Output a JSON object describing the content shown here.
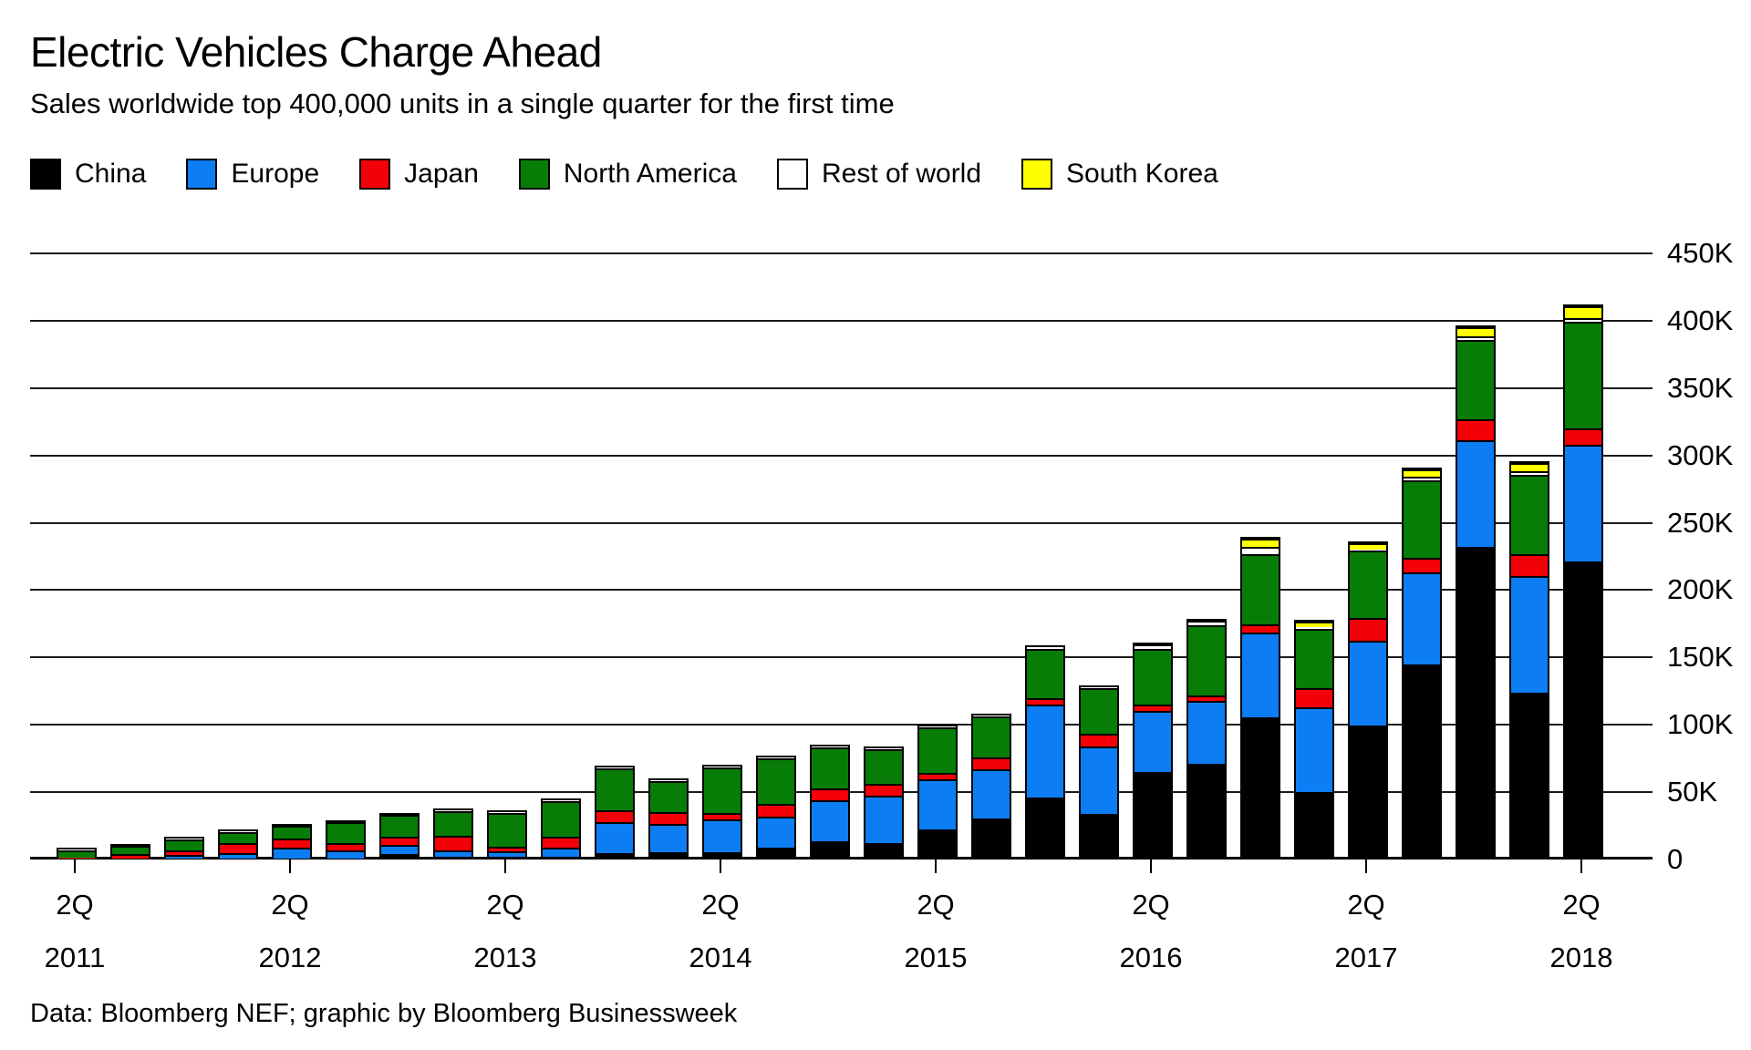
{
  "header": {
    "title": "Electric Vehicles Charge Ahead",
    "subtitle": "Sales worldwide top 400,000 units in a single quarter for the first time"
  },
  "footer": {
    "source": "Data: Bloomberg NEF; graphic by Bloomberg Businessweek"
  },
  "colors": {
    "china": "#000000",
    "europe": "#0d7df4",
    "japan": "#f40009",
    "north_america": "#077d07",
    "rest_of_world": "#ffffff",
    "south_korea": "#ffff00",
    "gridline": "#1a1a1a",
    "background": "#ffffff"
  },
  "chart_data": {
    "type": "bar",
    "stacked": true,
    "title": "Electric Vehicles Charge Ahead",
    "subtitle": "Sales worldwide top 400,000 units in a single quarter for the first time",
    "unit": "vehicles (values in thousands)",
    "grid": "horizontal",
    "legend_position": "top",
    "ylim": [
      0,
      450
    ],
    "y_tick_values": [
      0,
      50,
      100,
      150,
      200,
      250,
      300,
      350,
      400,
      450
    ],
    "y_tick_labels": [
      "0",
      "50K",
      "100K",
      "150K",
      "200K",
      "250K",
      "300K",
      "350K",
      "400K",
      "450K"
    ],
    "categories": [
      "2Q 2011",
      "3Q 2011",
      "4Q 2011",
      "1Q 2012",
      "2Q 2012",
      "3Q 2012",
      "4Q 2012",
      "1Q 2013",
      "2Q 2013",
      "3Q 2013",
      "4Q 2013",
      "1Q 2014",
      "2Q 2014",
      "3Q 2014",
      "4Q 2014",
      "1Q 2015",
      "2Q 2015",
      "3Q 2015",
      "4Q 2015",
      "1Q 2016",
      "2Q 2016",
      "3Q 2016",
      "4Q 2016",
      "1Q 2017",
      "2Q 2017",
      "3Q 2017",
      "4Q 2017",
      "1Q 2018",
      "2Q 2018"
    ],
    "x_ticks": [
      {
        "index": 0,
        "quarter": "2Q",
        "year": "2011"
      },
      {
        "index": 4,
        "quarter": "2Q",
        "year": "2012"
      },
      {
        "index": 8,
        "quarter": "2Q",
        "year": "2013"
      },
      {
        "index": 12,
        "quarter": "2Q",
        "year": "2014"
      },
      {
        "index": 16,
        "quarter": "2Q",
        "year": "2015"
      },
      {
        "index": 20,
        "quarter": "2Q",
        "year": "2016"
      },
      {
        "index": 24,
        "quarter": "2Q",
        "year": "2017"
      },
      {
        "index": 28,
        "quarter": "2Q",
        "year": "2018"
      }
    ],
    "series": [
      {
        "name": "China",
        "key": "china",
        "color": "#000000",
        "values": [
          0.7,
          0.8,
          1.0,
          1.0,
          1.0,
          1.0,
          5.0,
          2.5,
          2.0,
          2.0,
          5.0,
          6.0,
          6.0,
          9.5,
          14.0,
          13.0,
          23.0,
          32.0,
          47.5,
          35.0,
          67.5,
          73.0,
          109.0,
          51.5,
          102.0,
          148.0,
          236.0,
          126.5,
          225.0
        ]
      },
      {
        "name": "Europe",
        "key": "europe",
        "color": "#0d7df4",
        "values": [
          0.5,
          0.6,
          2.0,
          3.5,
          7.5,
          5.0,
          6.0,
          3.5,
          3.0,
          6.0,
          23.0,
          21.0,
          24.0,
          22.5,
          31.0,
          35.5,
          38.0,
          36.0,
          69.5,
          50.5,
          45.0,
          47.0,
          63.0,
          63.5,
          63.0,
          69.0,
          79.5,
          87.5,
          87.0
        ]
      },
      {
        "name": "Japan",
        "key": "japan",
        "color": "#f40009",
        "values": [
          0.8,
          2.0,
          2.8,
          7.5,
          6.5,
          5.0,
          5.0,
          10.5,
          2.7,
          7.5,
          8.0,
          8.0,
          4.0,
          8.5,
          7.5,
          8.0,
          3.5,
          8.0,
          3.5,
          8.0,
          3.5,
          2.5,
          5.0,
          13.5,
          15.5,
          9.5,
          14.5,
          15.0,
          11.0
        ]
      },
      {
        "name": "North America",
        "key": "north_america",
        "color": "#077d07",
        "values": [
          5.0,
          6.4,
          9.3,
          8.5,
          9.8,
          16.5,
          17.0,
          19.5,
          27.0,
          28.0,
          31.5,
          23.5,
          34.0,
          34.5,
          31.0,
          25.5,
          33.5,
          30.0,
          36.0,
          33.5,
          41.5,
          53.0,
          52.5,
          44.0,
          50.0,
          57.5,
          58.5,
          59.0,
          78.5
        ]
      },
      {
        "name": "Rest of world",
        "key": "rest_of_world",
        "color": "#ffffff",
        "values": [
          0.2,
          0.2,
          0.4,
          0.3,
          0.3,
          0.3,
          0.4,
          0.4,
          0.4,
          0.5,
          0.7,
          0.5,
          0.7,
          0.5,
          0.7,
          0.7,
          1.0,
          1.0,
          1.0,
          1.0,
          2.5,
          2.0,
          4.0,
          1.0,
          1.0,
          1.5,
          1.5,
          1.5,
          2.0
        ]
      },
      {
        "name": "South Korea",
        "key": "south_korea",
        "color": "#ffff00",
        "values": [
          0,
          0,
          0,
          0,
          0,
          0,
          0,
          0,
          0,
          0,
          0,
          0,
          0,
          0,
          0,
          0,
          0,
          0,
          0,
          0,
          0,
          0,
          4.5,
          3.0,
          3.5,
          4.0,
          5.5,
          5.0,
          7.5
        ]
      }
    ]
  }
}
